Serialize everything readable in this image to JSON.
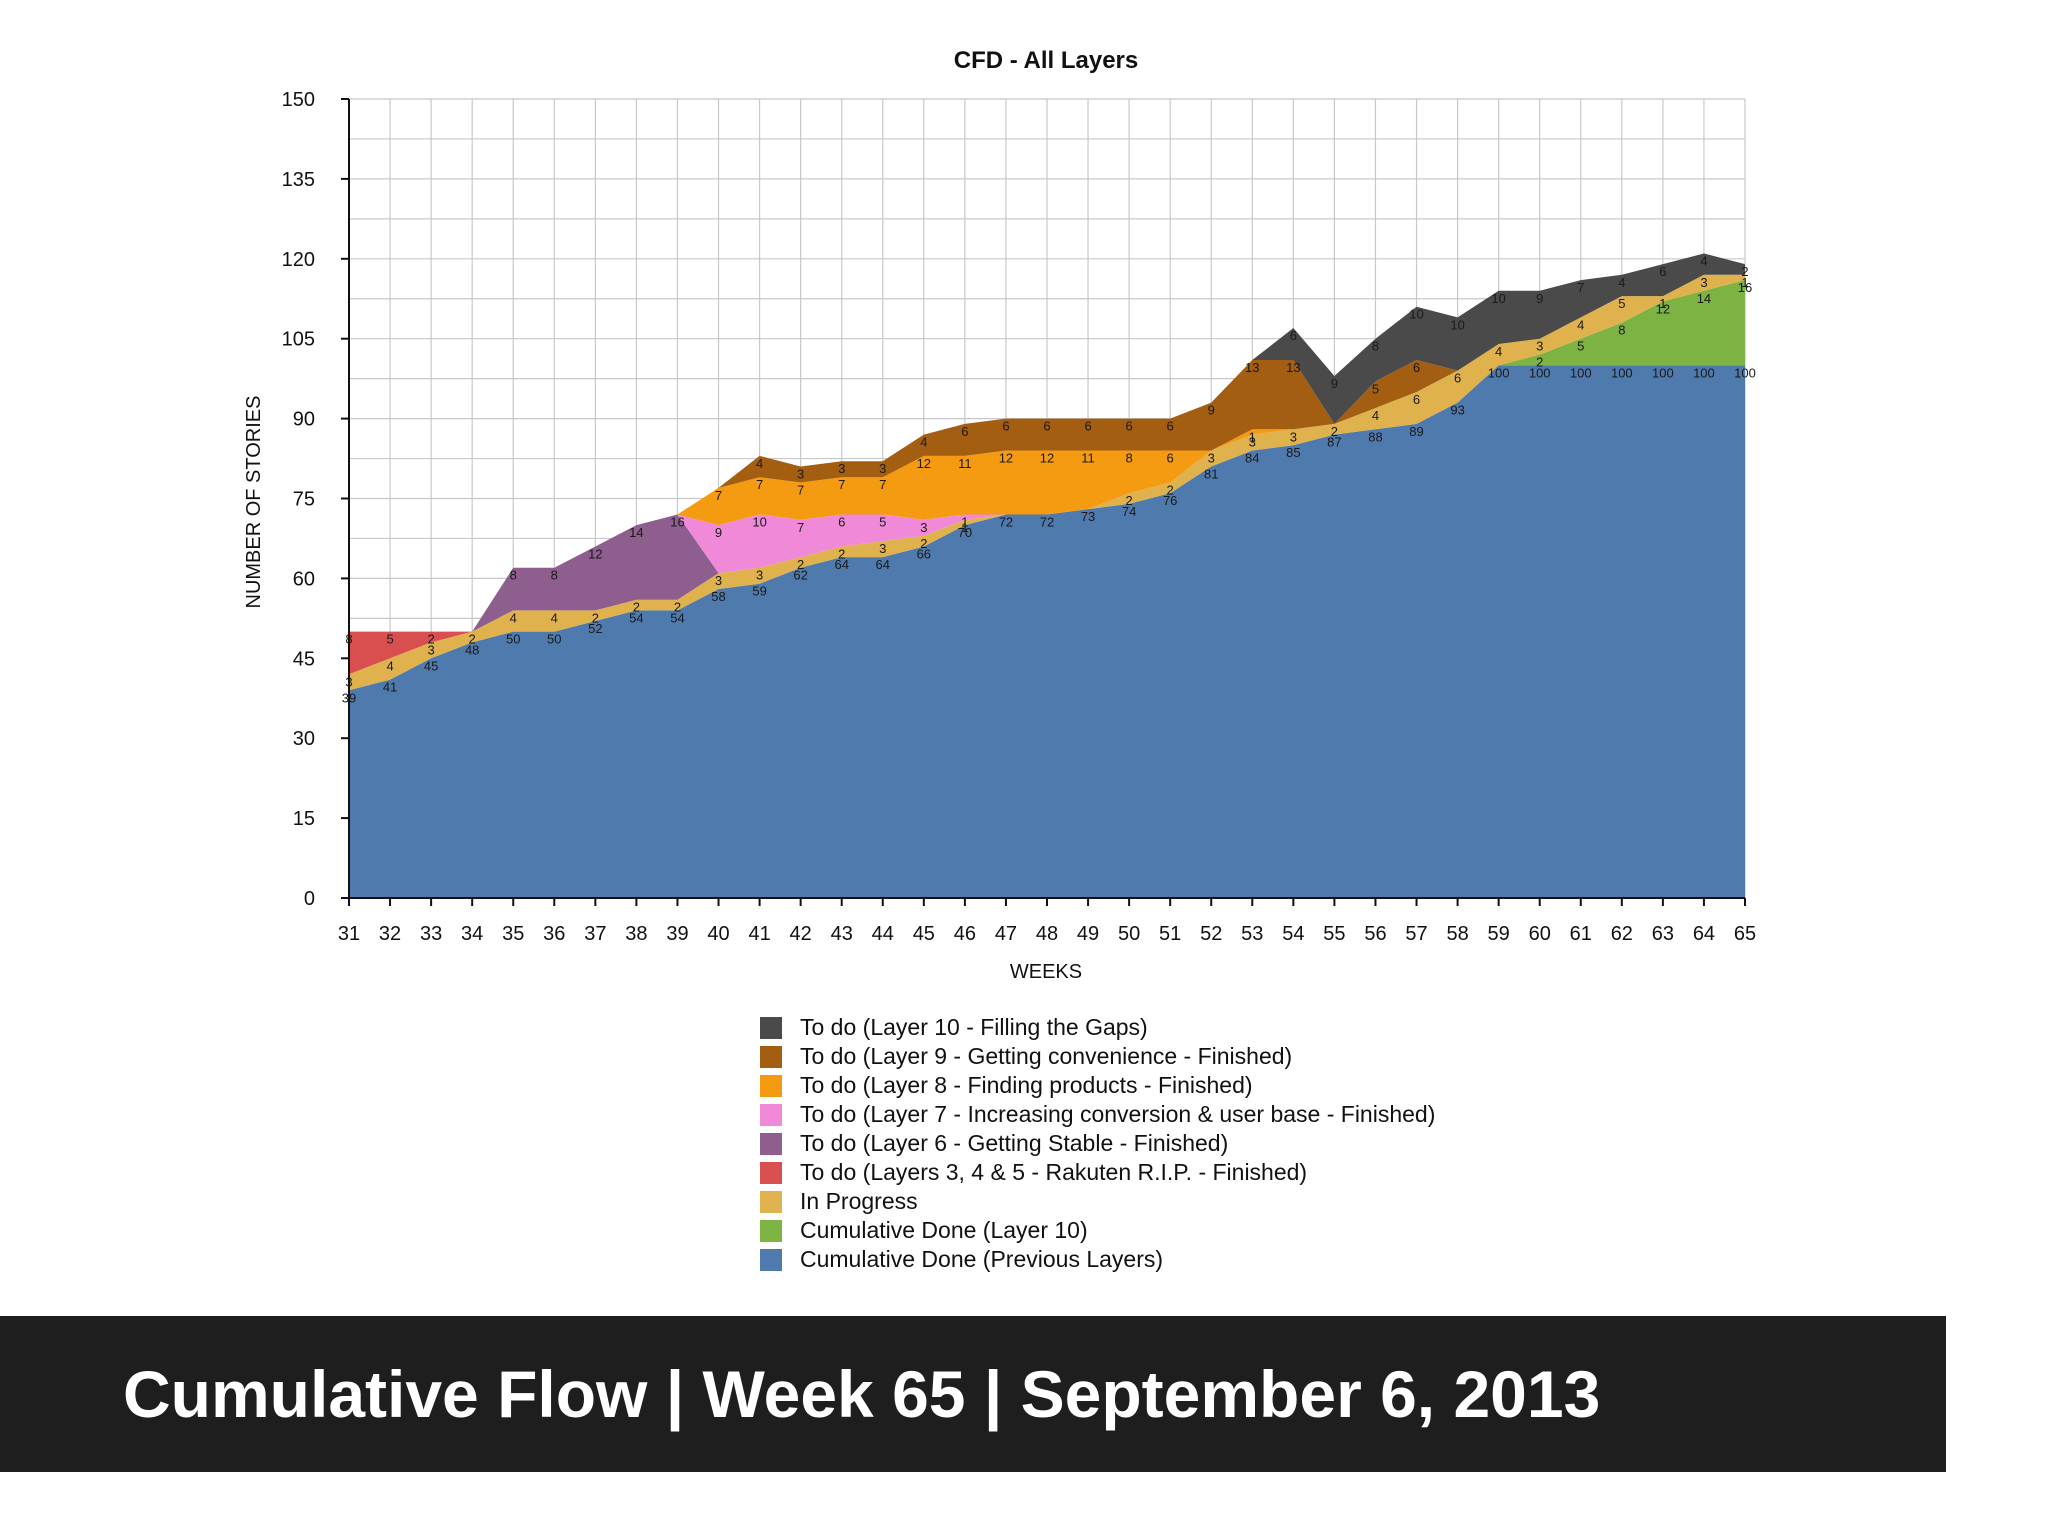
{
  "caption": "Cumulative Flow | Week 65 | September 6, 2013",
  "chart_data": {
    "type": "area",
    "stacked": true,
    "title": "CFD - All Layers",
    "xlabel": "WEEKS",
    "ylabel": "NUMBER OF STORIES",
    "ylim": [
      0,
      150
    ],
    "yticks": [
      0,
      15,
      30,
      45,
      60,
      75,
      90,
      105,
      120,
      135,
      150
    ],
    "grid": true,
    "legend_position": "bottom",
    "categories": [
      "31",
      "32",
      "33",
      "34",
      "35",
      "36",
      "37",
      "38",
      "39",
      "40",
      "41",
      "42",
      "43",
      "44",
      "45",
      "46",
      "47",
      "48",
      "49",
      "50",
      "51",
      "52",
      "53",
      "54",
      "55",
      "56",
      "57",
      "58",
      "59",
      "60",
      "61",
      "62",
      "63",
      "64",
      "65"
    ],
    "series": [
      {
        "name": "Cumulative Done (Previous Layers)",
        "color": "#4f7aad",
        "values": [
          39,
          41,
          45,
          48,
          50,
          50,
          52,
          54,
          54,
          58,
          59,
          62,
          64,
          64,
          66,
          70,
          72,
          72,
          73,
          74,
          76,
          81,
          84,
          85,
          87,
          88,
          89,
          93,
          100,
          100,
          100,
          100,
          100,
          100,
          100
        ]
      },
      {
        "name": "Cumulative Done (Layer  10)",
        "color": "#7cb342",
        "values": [
          0,
          0,
          0,
          0,
          0,
          0,
          0,
          0,
          0,
          0,
          0,
          0,
          0,
          0,
          0,
          0,
          0,
          0,
          0,
          0,
          0,
          0,
          0,
          0,
          0,
          0,
          0,
          0,
          0,
          2,
          5,
          8,
          12,
          14,
          16
        ]
      },
      {
        "name": "In Progress",
        "color": "#dfb24d",
        "values": [
          3,
          4,
          3,
          2,
          4,
          4,
          2,
          2,
          2,
          3,
          3,
          2,
          2,
          3,
          2,
          1,
          0,
          0,
          0,
          2,
          2,
          3,
          3,
          3,
          2,
          4,
          6,
          6,
          4,
          3,
          4,
          5,
          1,
          3,
          1
        ]
      },
      {
        "name": "To do (Layers 3, 4 & 5 - Rakuten R.I.P. - Finished)",
        "color": "#d94f4f",
        "values": [
          8,
          5,
          2,
          0,
          0,
          0,
          0,
          0,
          0,
          0,
          0,
          0,
          0,
          0,
          0,
          0,
          0,
          0,
          0,
          0,
          0,
          0,
          0,
          0,
          0,
          0,
          0,
          0,
          0,
          0,
          0,
          0,
          0,
          0,
          0
        ]
      },
      {
        "name": "To do (Layer 6 - Getting Stable - Finished)",
        "color": "#8e5e8e",
        "values": [
          0,
          0,
          0,
          0,
          8,
          8,
          12,
          14,
          16,
          0,
          0,
          0,
          0,
          0,
          0,
          0,
          0,
          0,
          0,
          0,
          0,
          0,
          0,
          0,
          0,
          0,
          0,
          0,
          0,
          0,
          0,
          0,
          0,
          0,
          0
        ]
      },
      {
        "name": "To do (Layer 7 - Increasing conversion & user base - Finished)",
        "color": "#f08ad8",
        "values": [
          0,
          0,
          0,
          0,
          0,
          0,
          0,
          0,
          0,
          9,
          10,
          7,
          6,
          5,
          3,
          1,
          0,
          0,
          0,
          0,
          0,
          0,
          0,
          0,
          0,
          0,
          0,
          0,
          0,
          0,
          0,
          0,
          0,
          0,
          0
        ]
      },
      {
        "name": "To do (Layer 8 - Finding products - Finished)",
        "color": "#f59b12",
        "values": [
          0,
          0,
          0,
          0,
          0,
          0,
          0,
          0,
          0,
          7,
          7,
          7,
          7,
          7,
          12,
          11,
          12,
          12,
          11,
          8,
          6,
          0,
          1,
          0,
          0,
          0,
          0,
          0,
          0,
          0,
          0,
          0,
          0,
          0,
          0
        ]
      },
      {
        "name": "To do (Layer 9 - Getting convenience - Finished)",
        "color": "#a35e12",
        "values": [
          0,
          0,
          0,
          0,
          0,
          0,
          0,
          0,
          0,
          0,
          4,
          3,
          3,
          3,
          4,
          6,
          6,
          6,
          6,
          6,
          6,
          9,
          13,
          13,
          0,
          5,
          6,
          0,
          0,
          0,
          0,
          0,
          0,
          0,
          0
        ]
      },
      {
        "name": "To do (Layer 10 - Filling the Gaps)",
        "color": "#4a4a4a",
        "values": [
          0,
          0,
          0,
          0,
          0,
          0,
          0,
          0,
          0,
          0,
          0,
          0,
          0,
          0,
          0,
          0,
          0,
          0,
          0,
          0,
          0,
          0,
          0,
          6,
          9,
          8,
          10,
          10,
          10,
          9,
          7,
          4,
          6,
          4,
          2
        ]
      }
    ],
    "legend_order": [
      8,
      7,
      6,
      5,
      4,
      3,
      2,
      1,
      0
    ]
  }
}
